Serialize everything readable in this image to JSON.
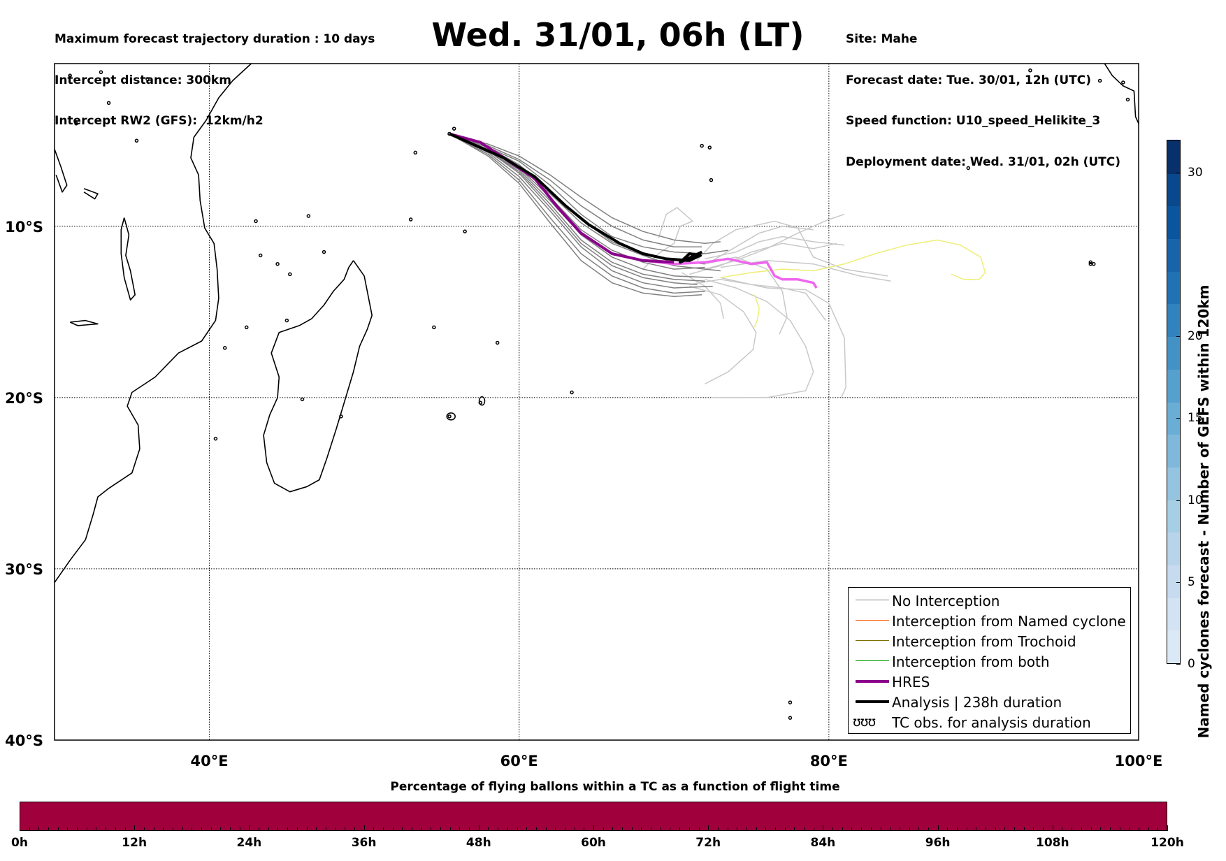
{
  "header": {
    "left_lines": [
      "Maximum forecast trajectory duration : 10 days",
      "Intercept distance: 300km",
      "Intercept RW2 (GFS):  12km/h2"
    ],
    "title": "Wed. 31/01, 06h (LT)",
    "right_lines": [
      "Site: Mahe",
      "Forecast date: Tue. 30/01, 12h (UTC)",
      "Speed function: U10_speed_Helikite_3",
      "Deployment date: Wed. 31/01, 02h (UTC)"
    ]
  },
  "map": {
    "extent": {
      "lon_min": 30,
      "lon_max": 100,
      "lat_min": -40,
      "lat_max": -0.5
    },
    "lat_labels": [
      {
        "text": "10°S",
        "lat": -10
      },
      {
        "text": "20°S",
        "lat": -20
      },
      {
        "text": "30°S",
        "lat": -30
      },
      {
        "text": "40°S",
        "lat": -40
      }
    ],
    "lon_labels": [
      {
        "text": "40°E",
        "lon": 40
      },
      {
        "text": "60°E",
        "lon": 60
      },
      {
        "text": "80°E",
        "lon": 80
      },
      {
        "text": "100°E",
        "lon": 100
      }
    ],
    "colors": {
      "no_interception": "#808080",
      "gefs_tracks": "#c8c8c8",
      "hres": "#8b008b",
      "hres_extension": "#ee66ee",
      "analysis": "#000000",
      "trochoid": "#eeee77"
    },
    "analysis_track": [
      [
        55.5,
        -4.6
      ],
      [
        57,
        -5.2
      ],
      [
        59,
        -6
      ],
      [
        61,
        -7.1
      ],
      [
        63,
        -8.8
      ],
      [
        64.5,
        -9.9
      ],
      [
        66.5,
        -11
      ],
      [
        68,
        -11.6
      ],
      [
        69.5,
        -11.9
      ],
      [
        71,
        -12
      ],
      [
        71.7,
        -11.7
      ],
      [
        71,
        -11.6
      ],
      [
        70.4,
        -12.1
      ],
      [
        71.8,
        -11.5
      ]
    ],
    "hres_track": [
      [
        55.5,
        -4.6
      ],
      [
        57.5,
        -5.1
      ],
      [
        59,
        -6
      ],
      [
        61,
        -7.2
      ],
      [
        62.5,
        -8.9
      ],
      [
        64,
        -10.4
      ],
      [
        66,
        -11.6
      ],
      [
        68,
        -12
      ],
      [
        70,
        -12.1
      ]
    ],
    "hres_extension_track": [
      [
        68,
        -12
      ],
      [
        70,
        -12.2
      ],
      [
        72,
        -12.1
      ],
      [
        73.5,
        -11.9
      ],
      [
        75,
        -12.2
      ],
      [
        76,
        -12.1
      ],
      [
        76.5,
        -12.9
      ],
      [
        77,
        -13.1
      ],
      [
        78,
        -13.1
      ],
      [
        79,
        -13.3
      ],
      [
        79.2,
        -13.6
      ]
    ],
    "trochoid_tracks": [
      [
        [
          73,
          -13
        ],
        [
          75,
          -12.7
        ],
        [
          77,
          -12.5
        ],
        [
          79,
          -12.6
        ],
        [
          81,
          -12.2
        ],
        [
          83,
          -11.6
        ],
        [
          85,
          -11.1
        ],
        [
          87,
          -10.8
        ],
        [
          88.5,
          -11.1
        ],
        [
          89.8,
          -11.8
        ],
        [
          90.1,
          -12.7
        ],
        [
          89.7,
          -13.1
        ],
        [
          88.7,
          -13.1
        ],
        [
          87.9,
          -12.8
        ]
      ],
      [
        [
          75.2,
          -14
        ],
        [
          75.5,
          -14.8
        ],
        [
          75.4,
          -15.4
        ],
        [
          75.2,
          -15.9
        ]
      ]
    ],
    "gray_tracks": [
      [
        [
          55.5,
          -4.6
        ],
        [
          58,
          -5.5
        ],
        [
          60,
          -6.6
        ],
        [
          62,
          -8.3
        ],
        [
          64,
          -10.2
        ],
        [
          66,
          -11.4
        ],
        [
          68,
          -12.1
        ],
        [
          70,
          -12.5
        ],
        [
          72,
          -12.4
        ]
      ],
      [
        [
          55.5,
          -4.6
        ],
        [
          58,
          -5.6
        ],
        [
          60,
          -6.8
        ],
        [
          62,
          -8.7
        ],
        [
          64,
          -10.8
        ],
        [
          66,
          -12.1
        ],
        [
          68,
          -12.8
        ],
        [
          70,
          -13.1
        ],
        [
          72,
          -13.2
        ]
      ],
      [
        [
          55.5,
          -4.6
        ],
        [
          58,
          -5.4
        ],
        [
          60,
          -6.2
        ],
        [
          62,
          -7.6
        ],
        [
          64,
          -9.3
        ],
        [
          66,
          -10.6
        ],
        [
          68,
          -11.2
        ],
        [
          70,
          -11.5
        ],
        [
          72,
          -11.6
        ],
        [
          73.5,
          -11.4
        ]
      ],
      [
        [
          55.5,
          -4.6
        ],
        [
          58,
          -5.7
        ],
        [
          60,
          -7.1
        ],
        [
          62,
          -9.1
        ],
        [
          64,
          -11.2
        ],
        [
          66,
          -12.6
        ],
        [
          68,
          -13.3
        ],
        [
          70,
          -13.6
        ],
        [
          72.5,
          -13.5
        ]
      ],
      [
        [
          55.5,
          -4.6
        ],
        [
          58,
          -5.3
        ],
        [
          60,
          -6.1
        ],
        [
          62,
          -7.3
        ],
        [
          64,
          -8.8
        ],
        [
          66,
          -10
        ],
        [
          68,
          -10.8
        ],
        [
          70,
          -11.2
        ],
        [
          71.8,
          -11.2
        ]
      ],
      [
        [
          55.5,
          -4.6
        ],
        [
          58,
          -5.8
        ],
        [
          60,
          -7.3
        ],
        [
          62,
          -9.5
        ],
        [
          64,
          -11.6
        ],
        [
          66,
          -12.9
        ],
        [
          68,
          -13.6
        ],
        [
          70,
          -13.9
        ],
        [
          72,
          -13.8
        ]
      ],
      [
        [
          55.5,
          -4.6
        ],
        [
          58,
          -5.5
        ],
        [
          60,
          -6.5
        ],
        [
          62,
          -8.1
        ],
        [
          64,
          -9.8
        ],
        [
          66,
          -11
        ],
        [
          68,
          -11.7
        ],
        [
          70,
          -12.3
        ],
        [
          73,
          -12.6
        ]
      ],
      [
        [
          55.5,
          -4.6
        ],
        [
          58,
          -5.6
        ],
        [
          60,
          -6.9
        ],
        [
          62,
          -8.9
        ],
        [
          64,
          -11
        ],
        [
          66,
          -12.3
        ],
        [
          68,
          -13
        ],
        [
          70,
          -13.3
        ],
        [
          71.5,
          -13.4
        ]
      ],
      [
        [
          55.5,
          -4.6
        ],
        [
          58,
          -5.4
        ],
        [
          60,
          -6.4
        ],
        [
          62,
          -7.9
        ],
        [
          64,
          -9.6
        ],
        [
          66,
          -10.9
        ],
        [
          68,
          -11.6
        ],
        [
          70,
          -12
        ],
        [
          72,
          -12.2
        ]
      ],
      [
        [
          55.5,
          -4.6
        ],
        [
          58,
          -5.9
        ],
        [
          60,
          -7.5
        ],
        [
          62,
          -9.8
        ],
        [
          64,
          -12
        ],
        [
          66,
          -13.3
        ],
        [
          68,
          -13.9
        ],
        [
          70,
          -14.1
        ],
        [
          71.8,
          -14
        ]
      ],
      [
        [
          55.5,
          -4.6
        ],
        [
          58,
          -5.2
        ],
        [
          60,
          -5.9
        ],
        [
          62,
          -7
        ],
        [
          64,
          -8.3
        ],
        [
          66,
          -9.5
        ],
        [
          68,
          -10.3
        ],
        [
          70,
          -10.8
        ],
        [
          72,
          -11
        ],
        [
          73,
          -10.9
        ]
      ],
      [
        [
          55.5,
          -4.6
        ],
        [
          58,
          -5.6
        ],
        [
          60,
          -6.7
        ],
        [
          62,
          -8.5
        ],
        [
          64,
          -10.5
        ],
        [
          66,
          -11.8
        ],
        [
          68,
          -12.5
        ],
        [
          70,
          -12.9
        ],
        [
          72.5,
          -13
        ]
      ]
    ],
    "light_tracks": [
      [
        [
          72,
          -12.5
        ],
        [
          74,
          -12
        ],
        [
          76,
          -11.3
        ],
        [
          78,
          -10.4
        ],
        [
          80,
          -9.6
        ],
        [
          81,
          -9.3
        ]
      ],
      [
        [
          71,
          -12.8
        ],
        [
          73,
          -12.3
        ],
        [
          75,
          -11.5
        ],
        [
          77,
          -11
        ],
        [
          79,
          -11.3
        ],
        [
          80.5,
          -11
        ]
      ],
      [
        [
          72,
          -13.1
        ],
        [
          74,
          -13.6
        ],
        [
          76,
          -14.4
        ],
        [
          77.5,
          -15.5
        ],
        [
          78.5,
          -17
        ],
        [
          79,
          -18.5
        ],
        [
          78.5,
          -19.6
        ],
        [
          76,
          -20
        ],
        [
          72.5,
          -20
        ]
      ],
      [
        [
          73,
          -13
        ],
        [
          76,
          -13.6
        ],
        [
          78.5,
          -13.7
        ],
        [
          80,
          -14.5
        ],
        [
          81,
          -16.5
        ],
        [
          81.1,
          -19.4
        ],
        [
          80.8,
          -20
        ]
      ],
      [
        [
          72,
          -12.2
        ],
        [
          74,
          -11.8
        ],
        [
          76,
          -12.5
        ],
        [
          77,
          -13.8
        ],
        [
          77.3,
          -15.3
        ],
        [
          76.8,
          -16.3
        ]
      ],
      [
        [
          71,
          -13.5
        ],
        [
          73,
          -14
        ],
        [
          74.5,
          -15
        ],
        [
          75.3,
          -16.2
        ],
        [
          75.1,
          -17.2
        ],
        [
          73.5,
          -18.5
        ],
        [
          72,
          -19.2
        ]
      ],
      [
        [
          72.5,
          -12
        ],
        [
          74,
          -11.2
        ],
        [
          75.5,
          -10.4
        ],
        [
          77,
          -10
        ],
        [
          79,
          -10.2
        ]
      ],
      [
        [
          71.5,
          -12
        ],
        [
          72.5,
          -11
        ],
        [
          74,
          -10.2
        ],
        [
          76.5,
          -9.7
        ],
        [
          78,
          -10.1
        ],
        [
          79,
          -11.8
        ],
        [
          81,
          -12.5
        ],
        [
          83.8,
          -12.9
        ]
      ],
      [
        [
          70.5,
          -12.7
        ],
        [
          72,
          -13.5
        ],
        [
          73,
          -14.5
        ],
        [
          73.2,
          -15.4
        ]
      ],
      [
        [
          68,
          -12.5
        ],
        [
          69,
          -11.6
        ],
        [
          70,
          -11
        ],
        [
          70.4,
          -10
        ],
        [
          71.2,
          -9.7
        ],
        [
          70.2,
          -8.9
        ],
        [
          69.5,
          -9.3
        ],
        [
          69,
          -10.7
        ]
      ],
      [
        [
          73,
          -12.4
        ],
        [
          76,
          -12
        ],
        [
          79,
          -12.2
        ],
        [
          82,
          -12.9
        ],
        [
          84,
          -13.2
        ]
      ],
      [
        [
          71,
          -13.4
        ],
        [
          73,
          -13.1
        ],
        [
          75,
          -13.4
        ],
        [
          77,
          -13.6
        ],
        [
          78.5,
          -13.9
        ],
        [
          79.8,
          -15.5
        ]
      ],
      [
        [
          72,
          -11.9
        ],
        [
          74,
          -11.5
        ],
        [
          75.5,
          -10.9
        ],
        [
          77,
          -10.6
        ],
        [
          79,
          -10.9
        ],
        [
          81,
          -11.1
        ]
      ]
    ],
    "legend": [
      {
        "label": "No Interception",
        "color": "#808080",
        "width": 1.5
      },
      {
        "label": "Interception from Named cyclone",
        "color": "#ff5500",
        "width": 1.5
      },
      {
        "label": "Interception from Trochoid",
        "color": "#807000",
        "width": 1.5
      },
      {
        "label": "Interception from both",
        "color": "#009900",
        "width": 1.5
      },
      {
        "label": "HRES",
        "color": "#8b008b",
        "width": 4
      },
      {
        "label": "Analysis | 238h duration",
        "color": "#000000",
        "width": 4
      },
      {
        "label": "TC obs. for analysis duration",
        "glyph": "ʊʊʊ"
      }
    ]
  },
  "colorbar_vertical": {
    "label": "Named cyclones forecast - Number of GEFS within 120km",
    "ticks": [
      "0",
      "5",
      "10",
      "15",
      "20",
      "30"
    ],
    "tick_values": [
      0,
      5,
      10,
      15,
      20,
      30
    ],
    "max": 32,
    "colors": [
      "#dbe9f6",
      "#d2e3f3",
      "#c6dbef",
      "#b7d4ea",
      "#a6cee4",
      "#94c4df",
      "#7fb8da",
      "#6aaed6",
      "#56a0ce",
      "#4292c6",
      "#3282be",
      "#2171b5",
      "#1764ab",
      "#0b559f",
      "#09488c",
      "#08306b"
    ]
  },
  "colorbar_horizontal": {
    "title": "Percentage of flying ballons within a TC as a function of flight time",
    "ticks": [
      "0h",
      "12h",
      "24h",
      "36h",
      "48h",
      "60h",
      "72h",
      "84h",
      "96h",
      "108h",
      "120h"
    ],
    "fill_color": "#a0003c"
  }
}
